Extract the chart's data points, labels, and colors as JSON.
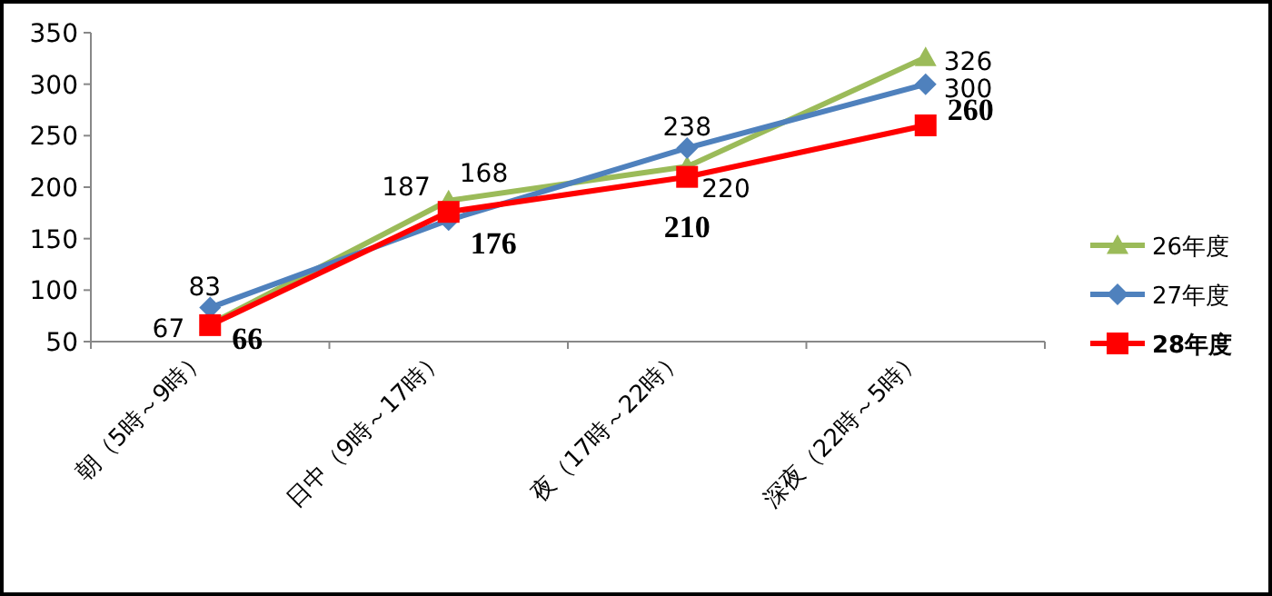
{
  "chart_data": {
    "type": "line",
    "categories": [
      "朝（5時～9時）",
      "日中（9時～17時）",
      "夜（17時～22時）",
      "深夜（22時～5時）"
    ],
    "series": [
      {
        "name": "26年度",
        "color": "#9bbb59",
        "marker": "triangle",
        "values": [
          67,
          187,
          220,
          326
        ]
      },
      {
        "name": "27年度",
        "color": "#4f81bd",
        "marker": "diamond",
        "values": [
          83,
          168,
          238,
          300
        ]
      },
      {
        "name": "28年度",
        "color": "#ff0000",
        "marker": "square",
        "values": [
          66,
          176,
          210,
          260
        ]
      }
    ],
    "ylim": [
      50,
      350
    ],
    "yticks": [
      50,
      100,
      150,
      200,
      250,
      300,
      350
    ],
    "grid": false,
    "legend": "right",
    "data_labels": true
  }
}
